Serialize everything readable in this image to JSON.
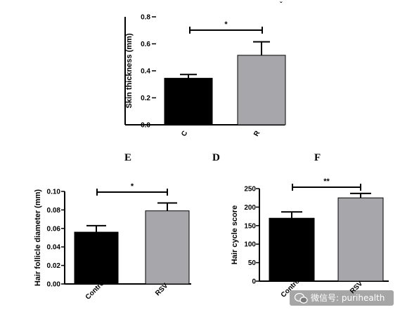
{
  "panel_labels": {
    "e": "E",
    "d": "D",
    "f": "F"
  },
  "watermark": {
    "text": "微信号: purihealth",
    "icon": "wechat-logo-icon"
  },
  "colors": {
    "control_bar": "#000000",
    "treatment_bar": "#a7a7ab",
    "axis": "#000000"
  },
  "chart_data": [
    {
      "id": "skin",
      "type": "bar",
      "title": "",
      "xlabel": "",
      "ylabel": "Skin thickness (mm)",
      "ylim": [
        0,
        0.8
      ],
      "yticks": [
        "0.0",
        "0.2",
        "0.4",
        "0.6",
        "0.8"
      ],
      "categories": [
        "C",
        "R"
      ],
      "values": [
        0.345,
        0.515
      ],
      "errors": [
        0.028,
        0.1
      ],
      "colors": [
        "#000000",
        "#a7a7ab"
      ],
      "significance": "*",
      "grid": false,
      "legend": "none"
    },
    {
      "id": "follicle",
      "type": "bar",
      "title": "",
      "xlabel": "",
      "ylabel": "Hair follicle diameter (mm)",
      "ylim": [
        0,
        0.1
      ],
      "yticks": [
        "0.00",
        "0.02",
        "0.04",
        "0.06",
        "0.08",
        "0.10"
      ],
      "categories": [
        "Control",
        "RSV"
      ],
      "values": [
        0.056,
        0.079
      ],
      "errors": [
        0.007,
        0.0085
      ],
      "colors": [
        "#000000",
        "#a7a7ab"
      ],
      "significance": "*",
      "grid": false,
      "legend": "none"
    },
    {
      "id": "cycle",
      "type": "bar",
      "title": "",
      "xlabel": "",
      "ylabel": "Hair cycle score",
      "ylim": [
        0,
        250
      ],
      "yticks": [
        "0",
        "50",
        "100",
        "150",
        "200",
        "250"
      ],
      "categories": [
        "Control",
        "RSV"
      ],
      "values": [
        170,
        225
      ],
      "errors": [
        17,
        12
      ],
      "colors": [
        "#000000",
        "#a7a7ab"
      ],
      "significance": "**",
      "grid": false,
      "legend": "none"
    }
  ]
}
